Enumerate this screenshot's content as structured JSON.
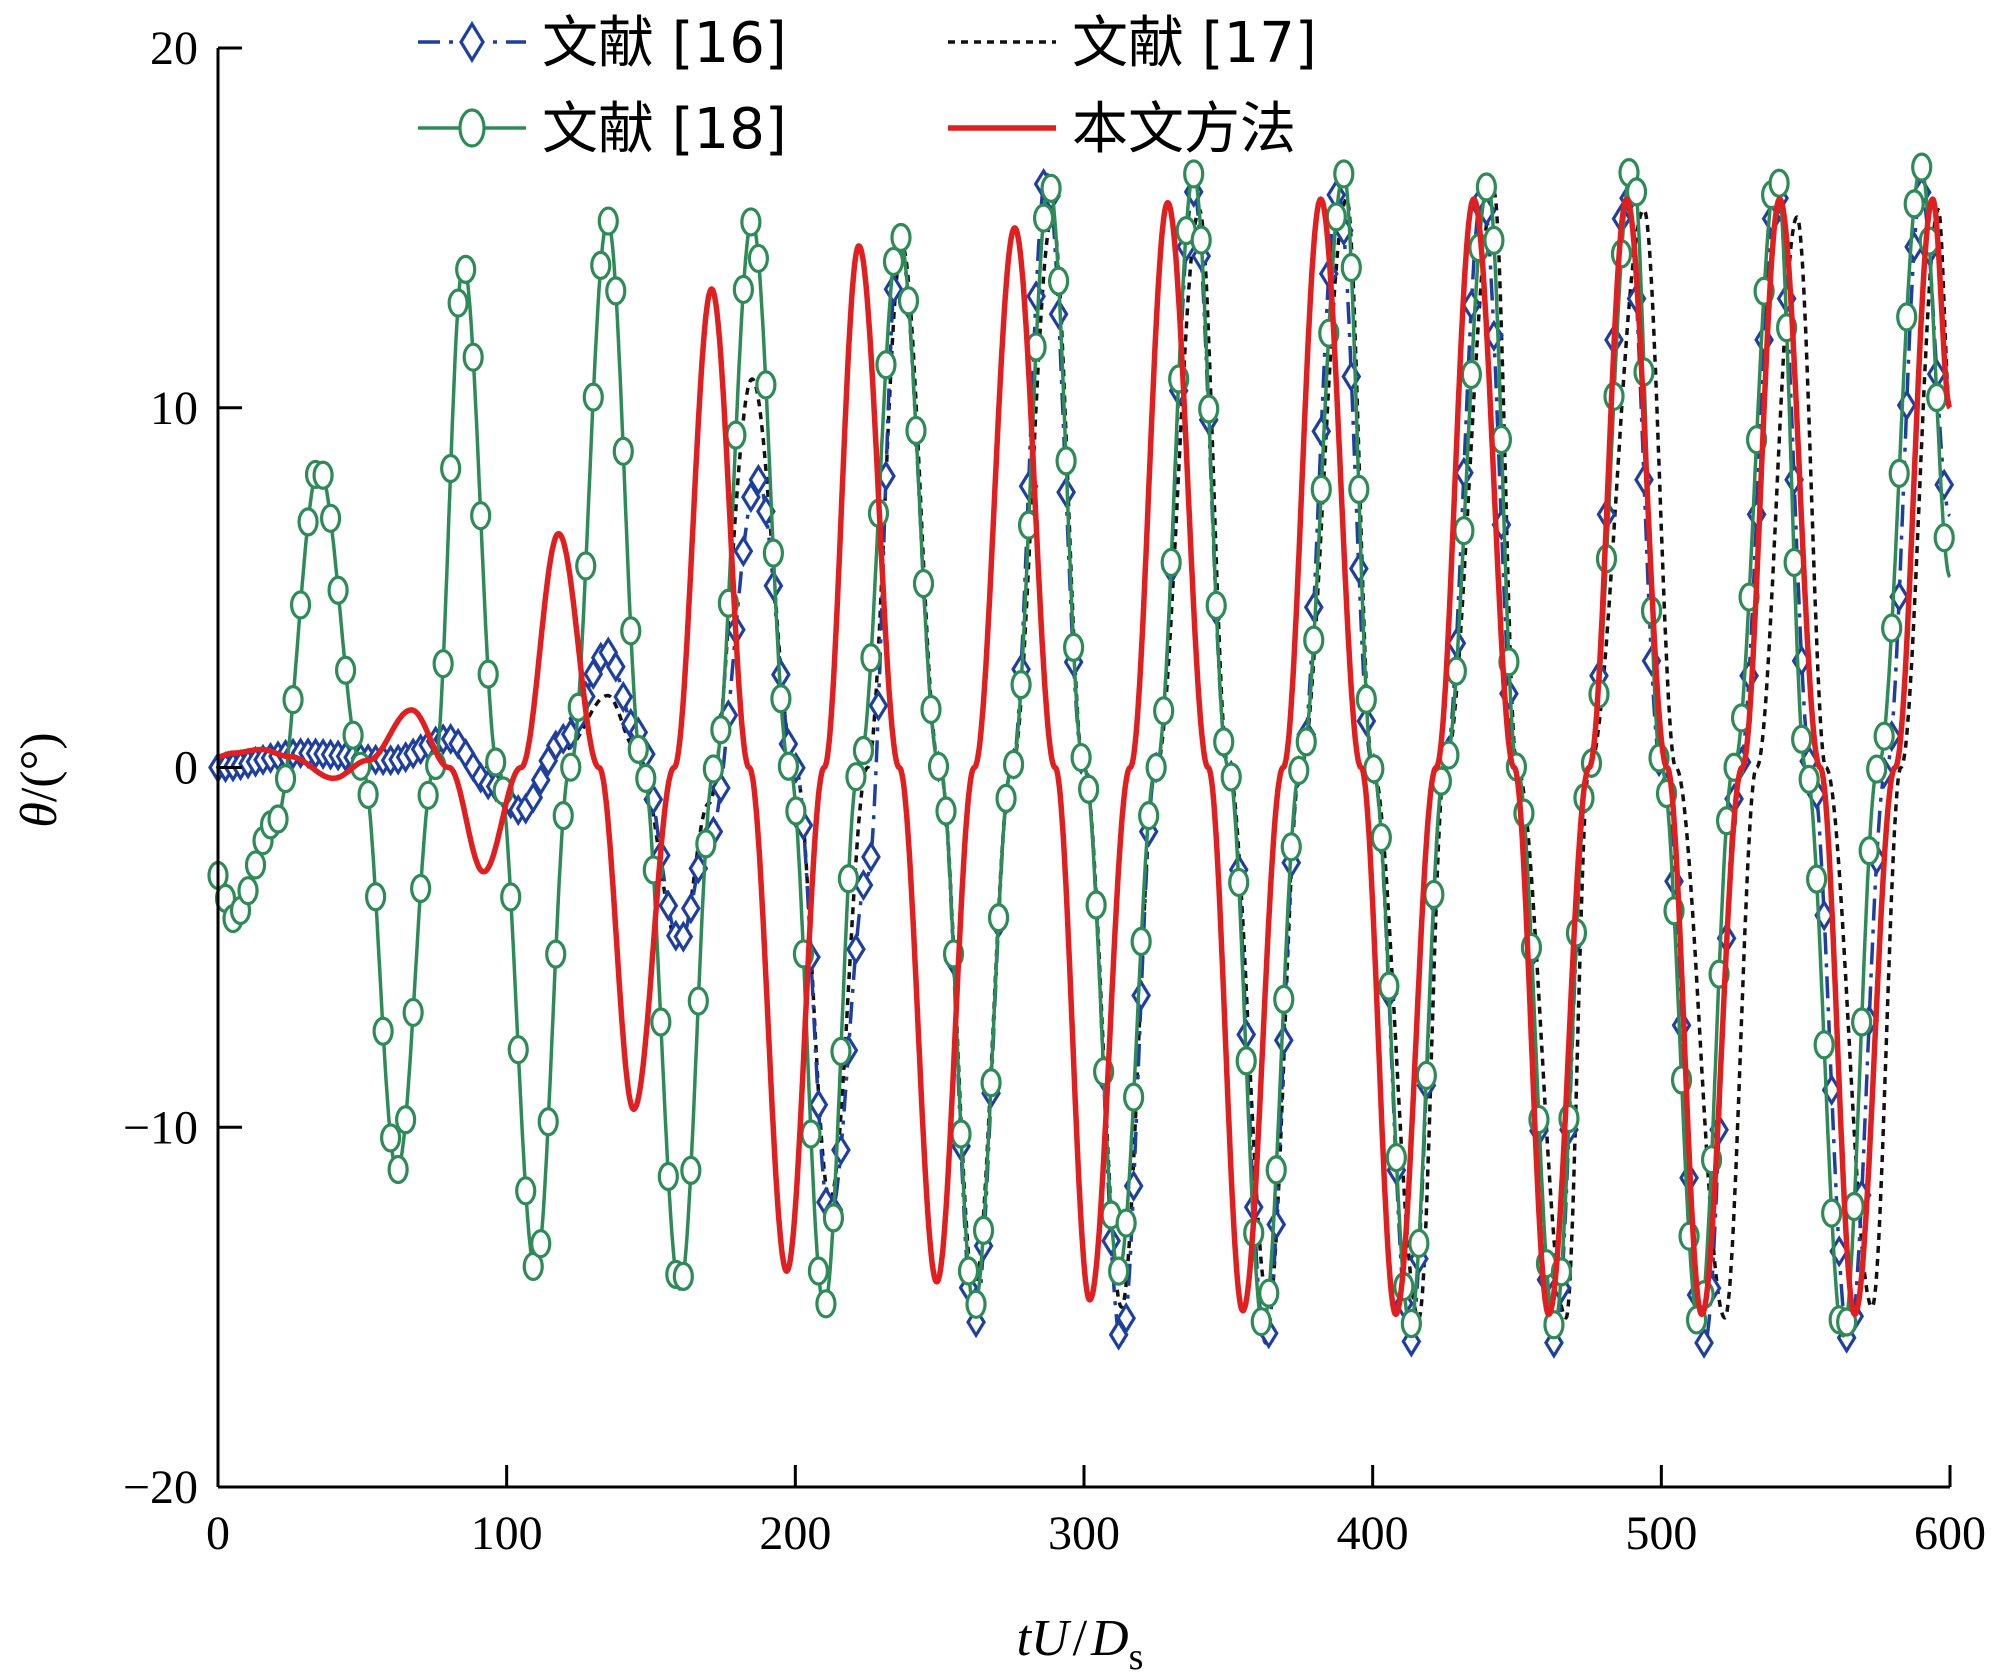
{
  "chart_data": {
    "type": "line",
    "title": "",
    "xlabel": {
      "main": "tU",
      "slash": "/",
      "var": "D",
      "sub": "s"
    },
    "ylabel": {
      "var": "θ",
      "rest": "/(°)"
    },
    "xlim": [
      0,
      600
    ],
    "ylim": [
      -20,
      20
    ],
    "xticks": [
      0,
      100,
      200,
      300,
      400,
      500,
      600
    ],
    "yticks": [
      -20,
      -10,
      0,
      10,
      20
    ],
    "xtick_labels": [
      "0",
      "100",
      "200",
      "300",
      "400",
      "500",
      "600"
    ],
    "ytick_labels": [
      "−20",
      "−10",
      "0",
      "10",
      "20"
    ],
    "grid": false,
    "legend_position": "top",
    "series": [
      {
        "name": "文献 [16]",
        "color": "#1f3f9e",
        "line_style": "dashdot",
        "marker": "diamond",
        "x": [
          0,
          30,
          60,
          80,
          95,
          105,
          120,
          135,
          145,
          160,
          170,
          187,
          200,
          212,
          225,
          236,
          250,
          262,
          275,
          287,
          300,
          313,
          325,
          338,
          350,
          363,
          375,
          388,
          400,
          413,
          425,
          438,
          450,
          463,
          475,
          488,
          500,
          515,
          527,
          540,
          552,
          565,
          578,
          590,
          600
        ],
        "y": [
          0,
          0.4,
          0.2,
          0.8,
          -0.5,
          -1.2,
          0.8,
          3.2,
          1.0,
          -4.8,
          -2.0,
          8.0,
          0,
          -12.5,
          -3.0,
          14.7,
          0,
          -15.5,
          0,
          16.5,
          0,
          -16.0,
          0,
          16.0,
          0,
          -16.0,
          0,
          16.0,
          0,
          -16.0,
          0,
          16.0,
          0,
          -16.0,
          0,
          16.0,
          0,
          -16.0,
          0,
          16.0,
          0,
          -16.0,
          0,
          16.0,
          7.0
        ]
      },
      {
        "name": "文献 [17]",
        "color": "#111111",
        "line_style": "dotted",
        "marker": "none",
        "x": [
          0,
          30,
          60,
          80,
          95,
          105,
          120,
          135,
          145,
          160,
          170,
          185,
          200,
          212,
          225,
          237,
          250,
          262,
          275,
          289,
          300,
          313,
          325,
          340,
          350,
          364,
          375,
          391,
          400,
          416,
          425,
          442,
          450,
          467,
          475,
          494,
          505,
          522,
          533,
          547,
          557,
          573,
          583,
          596,
          600
        ],
        "y": [
          0,
          0.3,
          0.3,
          0.5,
          0,
          -1.0,
          0.5,
          2.0,
          0.5,
          -5.0,
          -1.0,
          10.8,
          0,
          -12.0,
          0,
          14.5,
          0,
          -14.5,
          0,
          15.3,
          0,
          -15.0,
          0,
          15.5,
          0,
          -15.0,
          0,
          15.8,
          0,
          -15.3,
          0,
          16.0,
          0,
          -15.3,
          0,
          15.5,
          0,
          -15.3,
          0,
          15.3,
          0,
          -15.0,
          0,
          15.5,
          10.0
        ]
      },
      {
        "name": "文献 [18]",
        "color": "#2e8b57",
        "line_style": "solid",
        "marker": "circle",
        "x": [
          0,
          5,
          20,
          35,
          50,
          62,
          75,
          85,
          97,
          110,
          122,
          135,
          147,
          160,
          172,
          185,
          198,
          210,
          222,
          236,
          250,
          262,
          275,
          288,
          300,
          312,
          325,
          338,
          350,
          362,
          375,
          390,
          400,
          413,
          425,
          440,
          450,
          463,
          475,
          490,
          500,
          513,
          525,
          540,
          550,
          563,
          575,
          590,
          600
        ],
        "y": [
          -3.0,
          -4.2,
          -1.5,
          8.3,
          0,
          -11.2,
          0,
          14.0,
          0,
          -14.0,
          0,
          15.2,
          0,
          -14.5,
          0,
          15.2,
          0,
          -15.0,
          0,
          14.8,
          0,
          -15.0,
          0,
          16.2,
          0,
          -14.0,
          0,
          16.5,
          0,
          -15.5,
          0,
          16.5,
          0,
          -15.5,
          0,
          16.2,
          0,
          -15.5,
          0,
          16.8,
          0,
          -15.5,
          0,
          16.5,
          0,
          -15.8,
          0,
          16.7,
          5.3
        ]
      },
      {
        "name": "本文方法",
        "color": "#e02020",
        "line_style": "solid",
        "marker": "none",
        "x": [
          0,
          5,
          15,
          25,
          40,
          52,
          67,
          80,
          92,
          105,
          118,
          132,
          144,
          158,
          171,
          184,
          197,
          210,
          222,
          236,
          249,
          262,
          276,
          290,
          302,
          316,
          329,
          343,
          355,
          369,
          382,
          396,
          408,
          422,
          435,
          449,
          461,
          475,
          488,
          502,
          514,
          528,
          541,
          555,
          567,
          581,
          594,
          600
        ],
        "y": [
          0.3,
          0.4,
          0.5,
          0.3,
          -0.3,
          0.2,
          1.6,
          0,
          -2.9,
          0,
          6.5,
          0,
          -9.5,
          0,
          13.3,
          0,
          -14.0,
          0,
          14.5,
          0,
          -14.3,
          0,
          15.0,
          0,
          -14.8,
          0,
          15.7,
          0,
          -15.1,
          0,
          15.8,
          0,
          -15.2,
          0,
          15.8,
          0,
          -15.2,
          0,
          15.8,
          0,
          -15.2,
          0,
          15.8,
          0,
          -15.2,
          0,
          15.8,
          10.0
        ]
      }
    ]
  }
}
